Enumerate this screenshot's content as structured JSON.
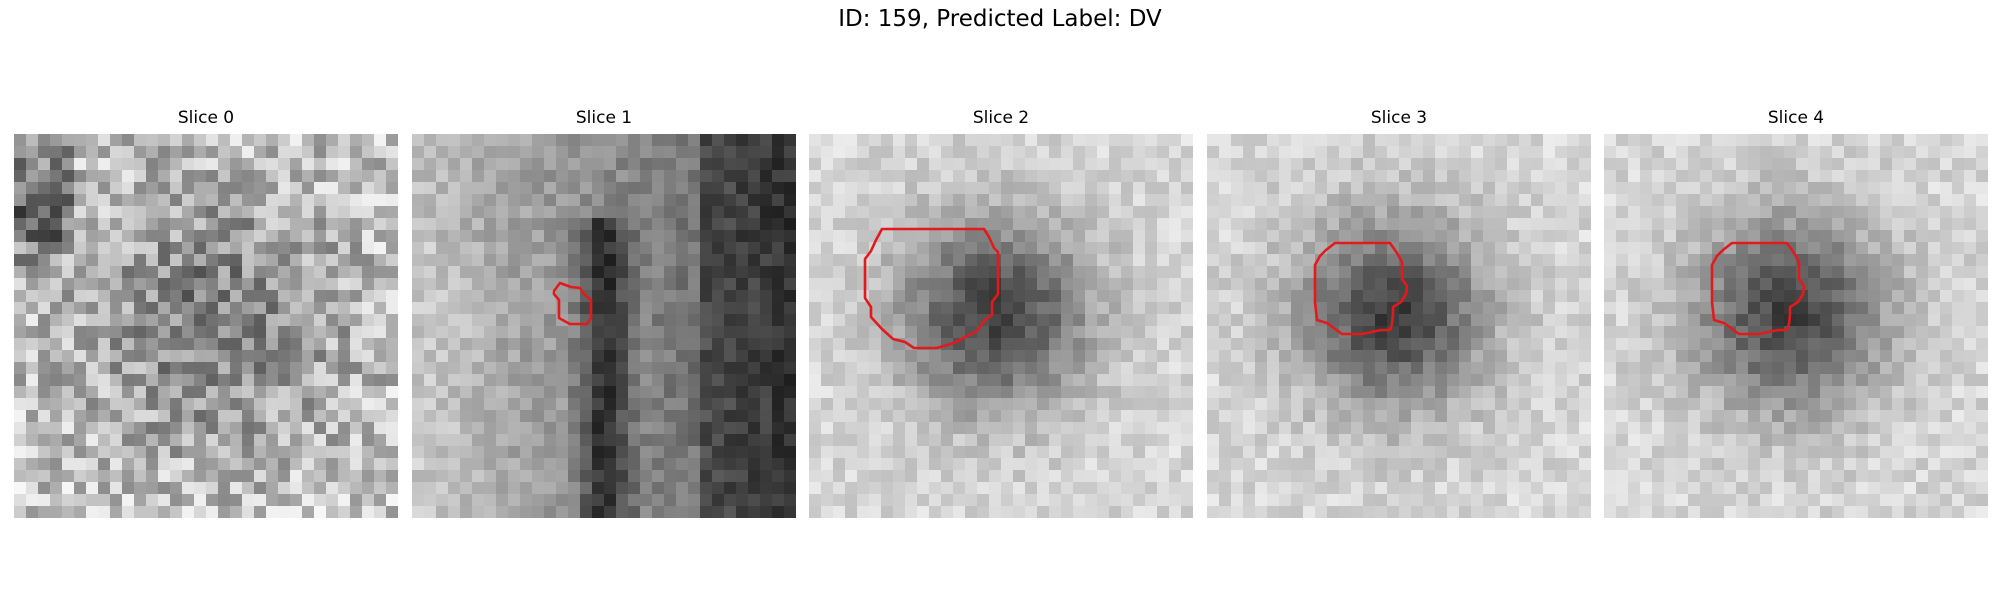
{
  "figure": {
    "title": "ID: 159, Predicted Label: DV"
  },
  "panels": [
    {
      "title": "Slice 0",
      "pattern": "noisy-texture",
      "has_contour": false
    },
    {
      "title": "Slice 1",
      "pattern": "dark-vertical-band",
      "has_contour": true
    },
    {
      "title": "Slice 2",
      "pattern": "dark-blob",
      "has_contour": true
    },
    {
      "title": "Slice 3",
      "pattern": "dark-blob",
      "has_contour": true
    },
    {
      "title": "Slice 4",
      "pattern": "dark-blob",
      "has_contour": true
    }
  ],
  "colors": {
    "contour": "#e31a1c",
    "background": "#ffffff"
  }
}
